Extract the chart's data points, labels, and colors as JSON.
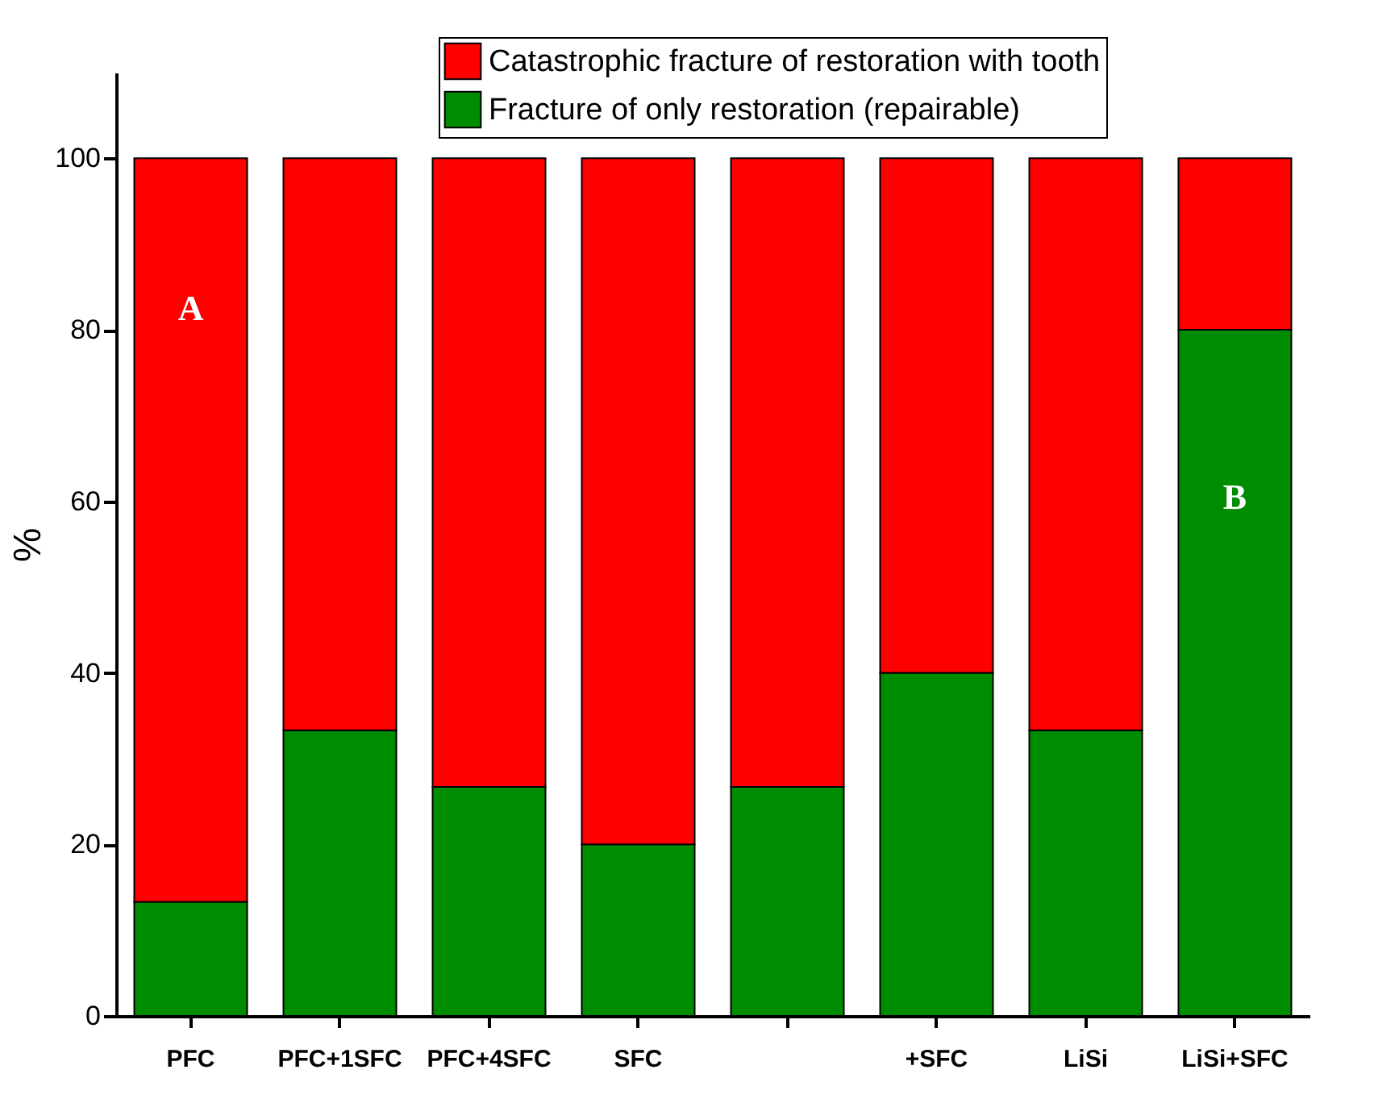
{
  "chart_data": {
    "type": "bar",
    "stacked": true,
    "ylabel": "%",
    "categories": [
      "PFC",
      "PFC+1SFC",
      "PFC+4SFC",
      "SFC",
      null,
      "+SFC",
      "LiSi",
      "LiSi+SFC"
    ],
    "series": [
      {
        "name": "Fracture of only restoration (repairable)",
        "color": "#008c00",
        "values": [
          13.3,
          33.3,
          26.7,
          20,
          26.7,
          40,
          33.3,
          80
        ]
      },
      {
        "name": "Catastrophic fracture of restoration with tooth",
        "color": "#ff0000",
        "values": [
          86.7,
          66.7,
          73.3,
          80,
          73.3,
          60,
          66.7,
          20
        ]
      }
    ],
    "ylim": [
      0,
      110
    ],
    "yticks": [
      0,
      20,
      40,
      60,
      80,
      100
    ],
    "grid": false,
    "legend": "top",
    "annotations": [
      "A",
      "B"
    ]
  }
}
